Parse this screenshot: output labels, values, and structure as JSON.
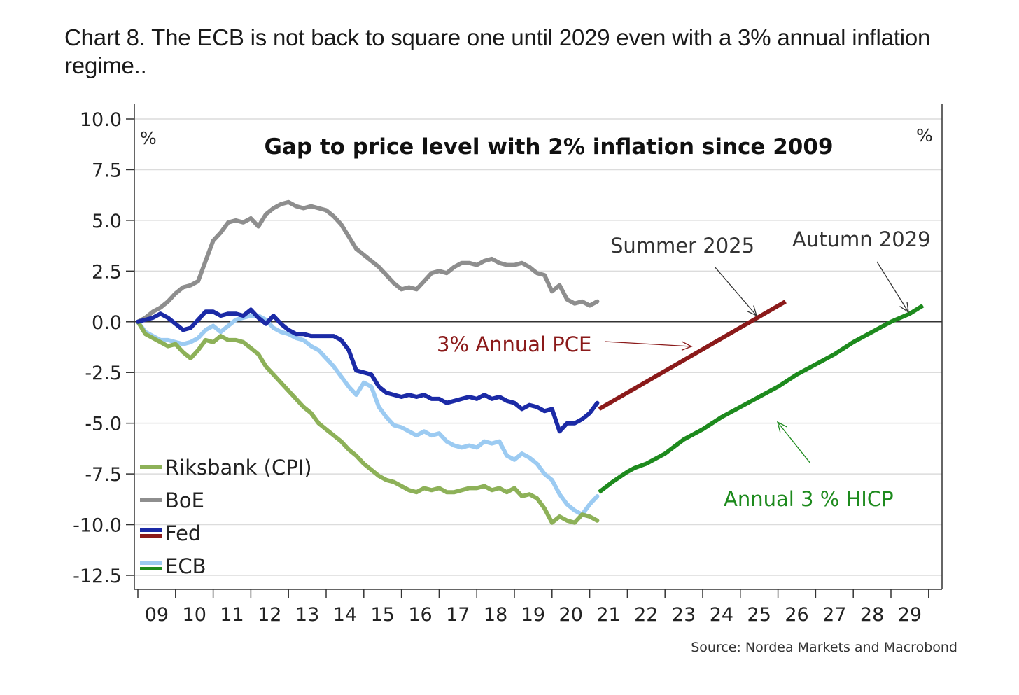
{
  "page": {
    "title": "Chart 8. The ECB is not back to square one until 2029 even with a 3% annual inflation regime.."
  },
  "chart_data": {
    "type": "line",
    "title": "Gap to price level with 2% inflation since 2009",
    "y_unit_left": "%",
    "y_unit_right": "%",
    "ylim": [
      -12.5,
      10.0
    ],
    "y_ticks": [
      "10.0",
      "7.5",
      "5.0",
      "2.5",
      "0.0",
      "-2.5",
      "-5.0",
      "-7.5",
      "-10.0",
      "-12.5"
    ],
    "x_ticks": [
      "09",
      "10",
      "11",
      "12",
      "13",
      "14",
      "15",
      "16",
      "17",
      "18",
      "19",
      "20",
      "21",
      "22",
      "23",
      "24",
      "25",
      "26",
      "27",
      "28",
      "29"
    ],
    "xlim": [
      2009.0,
      2029.85
    ],
    "grid": true,
    "legend_position": "bottom-left",
    "source": "Source: Nordea Markets and Macrobond",
    "series": [
      {
        "name": "Riksbank (CPI)",
        "color": "#8db158",
        "x": [
          2009.0,
          2009.2,
          2009.4,
          2009.6,
          2009.8,
          2010.0,
          2010.2,
          2010.4,
          2010.6,
          2010.8,
          2011.0,
          2011.2,
          2011.4,
          2011.6,
          2011.8,
          2012.0,
          2012.2,
          2012.4,
          2012.6,
          2012.8,
          2013.0,
          2013.2,
          2013.4,
          2013.6,
          2013.8,
          2014.0,
          2014.2,
          2014.4,
          2014.6,
          2014.8,
          2015.0,
          2015.2,
          2015.4,
          2015.6,
          2015.8,
          2016.0,
          2016.2,
          2016.4,
          2016.6,
          2016.8,
          2017.0,
          2017.2,
          2017.4,
          2017.6,
          2017.8,
          2018.0,
          2018.2,
          2018.4,
          2018.6,
          2018.8,
          2019.0,
          2019.2,
          2019.4,
          2019.6,
          2019.8,
          2020.0,
          2020.2,
          2020.4,
          2020.6,
          2020.8,
          2021.0,
          2021.2
        ],
        "values": [
          0.0,
          -0.6,
          -0.8,
          -1.0,
          -1.2,
          -1.1,
          -1.5,
          -1.8,
          -1.4,
          -0.9,
          -1.0,
          -0.7,
          -0.9,
          -0.9,
          -1.0,
          -1.3,
          -1.6,
          -2.2,
          -2.6,
          -3.0,
          -3.4,
          -3.8,
          -4.2,
          -4.5,
          -5.0,
          -5.3,
          -5.6,
          -5.9,
          -6.3,
          -6.6,
          -7.0,
          -7.3,
          -7.6,
          -7.8,
          -7.9,
          -8.1,
          -8.3,
          -8.4,
          -8.2,
          -8.3,
          -8.2,
          -8.4,
          -8.4,
          -8.3,
          -8.2,
          -8.2,
          -8.1,
          -8.3,
          -8.2,
          -8.4,
          -8.2,
          -8.6,
          -8.5,
          -8.7,
          -9.2,
          -9.9,
          -9.6,
          -9.8,
          -9.9,
          -9.5,
          -9.6,
          -9.8
        ]
      },
      {
        "name": "BoE",
        "color": "#8e8e8e",
        "x": [
          2009.0,
          2009.2,
          2009.4,
          2009.6,
          2009.8,
          2010.0,
          2010.2,
          2010.4,
          2010.6,
          2010.8,
          2011.0,
          2011.2,
          2011.4,
          2011.6,
          2011.8,
          2012.0,
          2012.2,
          2012.4,
          2012.6,
          2012.8,
          2013.0,
          2013.2,
          2013.4,
          2013.6,
          2013.8,
          2014.0,
          2014.2,
          2014.4,
          2014.6,
          2014.8,
          2015.0,
          2015.2,
          2015.4,
          2015.6,
          2015.8,
          2016.0,
          2016.2,
          2016.4,
          2016.6,
          2016.8,
          2017.0,
          2017.2,
          2017.4,
          2017.6,
          2017.8,
          2018.0,
          2018.2,
          2018.4,
          2018.6,
          2018.8,
          2019.0,
          2019.2,
          2019.4,
          2019.6,
          2019.8,
          2020.0,
          2020.2,
          2020.4,
          2020.6,
          2020.8,
          2021.0,
          2021.2
        ],
        "values": [
          0.0,
          0.2,
          0.5,
          0.7,
          1.0,
          1.4,
          1.7,
          1.8,
          2.0,
          3.0,
          4.0,
          4.4,
          4.9,
          5.0,
          4.9,
          5.1,
          4.7,
          5.3,
          5.6,
          5.8,
          5.9,
          5.7,
          5.6,
          5.7,
          5.6,
          5.5,
          5.2,
          4.8,
          4.2,
          3.6,
          3.3,
          3.0,
          2.7,
          2.3,
          1.9,
          1.6,
          1.7,
          1.6,
          2.0,
          2.4,
          2.5,
          2.4,
          2.7,
          2.9,
          2.9,
          2.8,
          3.0,
          3.1,
          2.9,
          2.8,
          2.8,
          2.9,
          2.7,
          2.4,
          2.3,
          1.5,
          1.8,
          1.1,
          0.9,
          1.0,
          0.8,
          1.0
        ]
      },
      {
        "name": "Fed",
        "color": "#1b2aa6",
        "x": [
          2009.0,
          2009.2,
          2009.4,
          2009.6,
          2009.8,
          2010.0,
          2010.2,
          2010.4,
          2010.6,
          2010.8,
          2011.0,
          2011.2,
          2011.4,
          2011.6,
          2011.8,
          2012.0,
          2012.2,
          2012.4,
          2012.6,
          2012.8,
          2013.0,
          2013.2,
          2013.4,
          2013.6,
          2013.8,
          2014.0,
          2014.2,
          2014.4,
          2014.6,
          2014.8,
          2015.0,
          2015.2,
          2015.4,
          2015.6,
          2015.8,
          2016.0,
          2016.2,
          2016.4,
          2016.6,
          2016.8,
          2017.0,
          2017.2,
          2017.4,
          2017.6,
          2017.8,
          2018.0,
          2018.2,
          2018.4,
          2018.6,
          2018.8,
          2019.0,
          2019.2,
          2019.4,
          2019.6,
          2019.8,
          2020.0,
          2020.2,
          2020.4,
          2020.6,
          2020.8,
          2021.0,
          2021.2
        ],
        "values": [
          0.0,
          0.1,
          0.2,
          0.4,
          0.2,
          -0.1,
          -0.4,
          -0.3,
          0.1,
          0.5,
          0.5,
          0.3,
          0.4,
          0.4,
          0.3,
          0.6,
          0.2,
          -0.1,
          0.3,
          -0.1,
          -0.4,
          -0.6,
          -0.6,
          -0.7,
          -0.7,
          -0.7,
          -0.7,
          -0.9,
          -1.4,
          -2.4,
          -2.5,
          -2.6,
          -3.2,
          -3.5,
          -3.6,
          -3.7,
          -3.6,
          -3.7,
          -3.6,
          -3.8,
          -3.8,
          -4.0,
          -3.9,
          -3.8,
          -3.7,
          -3.8,
          -3.6,
          -3.8,
          -3.7,
          -3.9,
          -4.0,
          -4.3,
          -4.1,
          -4.2,
          -4.4,
          -4.3,
          -5.4,
          -5.0,
          -5.0,
          -4.8,
          -4.5,
          -4.0
        ]
      },
      {
        "name": "ECB",
        "color": "#9ccbf2",
        "x": [
          2009.0,
          2009.2,
          2009.4,
          2009.6,
          2009.8,
          2010.0,
          2010.2,
          2010.4,
          2010.6,
          2010.8,
          2011.0,
          2011.2,
          2011.4,
          2011.6,
          2011.8,
          2012.0,
          2012.2,
          2012.4,
          2012.6,
          2012.8,
          2013.0,
          2013.2,
          2013.4,
          2013.6,
          2013.8,
          2014.0,
          2014.2,
          2014.4,
          2014.6,
          2014.8,
          2015.0,
          2015.2,
          2015.4,
          2015.6,
          2015.8,
          2016.0,
          2016.2,
          2016.4,
          2016.6,
          2016.8,
          2017.0,
          2017.2,
          2017.4,
          2017.6,
          2017.8,
          2018.0,
          2018.2,
          2018.4,
          2018.6,
          2018.8,
          2019.0,
          2019.2,
          2019.4,
          2019.6,
          2019.8,
          2020.0,
          2020.2,
          2020.4,
          2020.6,
          2020.8,
          2021.0,
          2021.2
        ],
        "values": [
          0.0,
          -0.5,
          -0.7,
          -0.9,
          -0.9,
          -1.0,
          -1.1,
          -1.0,
          -0.8,
          -0.4,
          -0.2,
          -0.5,
          -0.2,
          0.1,
          0.2,
          0.3,
          0.3,
          0.1,
          -0.3,
          -0.5,
          -0.6,
          -0.8,
          -0.9,
          -1.2,
          -1.4,
          -1.8,
          -2.2,
          -2.7,
          -3.2,
          -3.6,
          -3.0,
          -3.2,
          -4.2,
          -4.7,
          -5.1,
          -5.2,
          -5.4,
          -5.6,
          -5.4,
          -5.6,
          -5.5,
          -5.9,
          -6.1,
          -6.2,
          -6.1,
          -6.2,
          -5.9,
          -6.0,
          -5.9,
          -6.6,
          -6.8,
          -6.5,
          -6.7,
          -7.0,
          -7.5,
          -7.8,
          -8.5,
          -9.0,
          -9.3,
          -9.5,
          -9.0,
          -8.6
        ]
      }
    ],
    "projections": [
      {
        "label": "3% Annual PCE",
        "color": "#8b1a1a",
        "x": [
          2021.25,
          2026.2
        ],
        "values": [
          -4.3,
          1.0
        ]
      },
      {
        "label": "Annual 3 % HICP",
        "color": "#1d8a1d",
        "x": [
          2021.25,
          2021.6,
          2022.0,
          2022.2,
          2022.5,
          2023.0,
          2023.5,
          2024.0,
          2024.5,
          2025.0,
          2025.5,
          2026.0,
          2026.5,
          2027.0,
          2027.5,
          2028.0,
          2028.5,
          2029.0,
          2029.5,
          2029.85
        ],
        "values": [
          -8.4,
          -7.9,
          -7.4,
          -7.2,
          -7.0,
          -6.5,
          -5.8,
          -5.3,
          -4.7,
          -4.2,
          -3.7,
          -3.2,
          -2.6,
          -2.1,
          -1.6,
          -1.0,
          -0.5,
          0.0,
          0.4,
          0.8
        ]
      }
    ],
    "annotations": [
      {
        "text": "Summer 2025",
        "color": "#333333"
      },
      {
        "text": "Autumn 2029",
        "color": "#333333"
      },
      {
        "text": "3% Annual PCE",
        "color": "#8b1a1a"
      },
      {
        "text": "Annual 3 % HICP",
        "color": "#1d8a1d"
      }
    ]
  }
}
